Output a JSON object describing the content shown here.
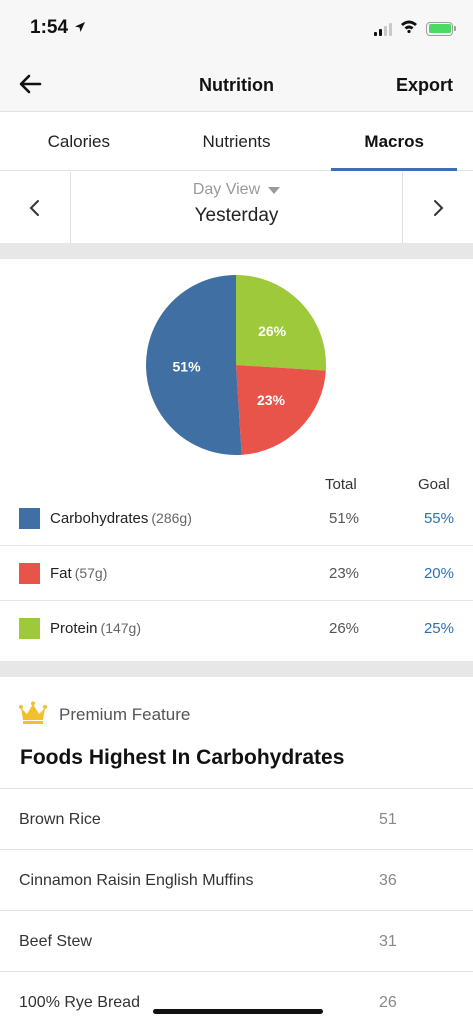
{
  "status_bar": {
    "time": "1:54",
    "colors": {
      "battery_fill": "#4cd964"
    },
    "icons": [
      "location-arrow-icon",
      "cellular-signal-icon",
      "wifi-icon",
      "battery-charging-icon"
    ]
  },
  "nav": {
    "title": "Nutrition",
    "export_label": "Export",
    "back_icon": "back-arrow-icon"
  },
  "tabs": [
    {
      "label": "Calories",
      "active": false
    },
    {
      "label": "Nutrients",
      "active": false
    },
    {
      "label": "Macros",
      "active": true
    }
  ],
  "date_selector": {
    "view_label": "Day View",
    "date_label": "Yesterday",
    "prev_icon": "chevron-left-icon",
    "next_icon": "chevron-right-icon"
  },
  "chart_data": {
    "type": "pie",
    "title": "",
    "categories": [
      "Carbohydrates",
      "Fat",
      "Protein"
    ],
    "values": [
      51,
      23,
      26
    ],
    "labels": [
      "51%",
      "23%",
      "26%"
    ],
    "colors": [
      "#3f6fa3",
      "#e8534a",
      "#9dc93b"
    ]
  },
  "legend": {
    "total_header": "Total",
    "goal_header": "Goal",
    "rows": [
      {
        "name": "Carbohydrates",
        "grams": "(286g)",
        "total": "51%",
        "goal": "55%",
        "color": "#3f6fa3"
      },
      {
        "name": "Fat",
        "grams": "(57g)",
        "total": "23%",
        "goal": "20%",
        "color": "#e8534a"
      },
      {
        "name": "Protein",
        "grams": "(147g)",
        "total": "26%",
        "goal": "25%",
        "color": "#9dc93b"
      }
    ]
  },
  "premium": {
    "label": "Premium Feature",
    "icon": "crown-icon",
    "section_title": "Foods Highest In Carbohydrates"
  },
  "foods": [
    {
      "name": "Brown Rice",
      "value": "51"
    },
    {
      "name": "Cinnamon Raisin English Muffins",
      "value": "36"
    },
    {
      "name": "Beef Stew",
      "value": "31"
    },
    {
      "name": "100% Rye Bread",
      "value": "26"
    }
  ]
}
